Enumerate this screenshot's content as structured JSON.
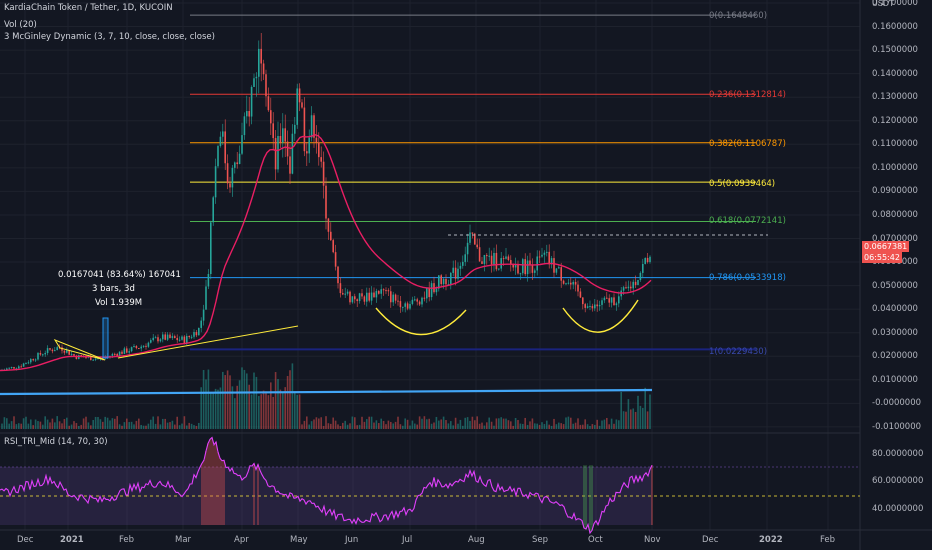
{
  "header": {
    "symbol_title": "KardiaChain Token / Tether, 1D, KUCOIN",
    "volume_label": "Vol (20)",
    "indicator_label": "3 McGinley Dynamic (3, 7, 10, close, close, close)",
    "currency": "USDT"
  },
  "measure_box": {
    "change": "0.0167041 (83.64%) 167041",
    "bars": "3 bars, 3d",
    "volume": "Vol 1.939M"
  },
  "fib_levels": [
    {
      "label": "0(0.1648460)",
      "value": 0.164846,
      "color": "#787b86"
    },
    {
      "label": "0.236(0.1312814)",
      "value": 0.1312814,
      "color": "#e53935"
    },
    {
      "label": "0.382(0.1106787)",
      "value": 0.1106787,
      "color": "#ff9800"
    },
    {
      "label": "0.5(0.0939464)",
      "value": 0.0939464,
      "color": "#ffeb3b"
    },
    {
      "label": "0.618(0.0772141)",
      "value": 0.0772141,
      "color": "#4caf50"
    },
    {
      "label": "0.786(0.0533918)",
      "value": 0.0533918,
      "color": "#2196f3"
    },
    {
      "label": "1(0.0229430)",
      "value": 0.022943,
      "color": "#1a237e"
    }
  ],
  "price_axis": {
    "ticks": [
      "0.1700000",
      "0.1600000",
      "0.1500000",
      "0.1400000",
      "0.1300000",
      "0.1200000",
      "0.1100000",
      "0.1000000",
      "0.0900000",
      "0.0800000",
      "0.0700000",
      "0.0600000",
      "0.0500000",
      "0.0400000",
      "0.0300000",
      "0.0200000",
      "0.0100000",
      "-0.0000000",
      "-0.0100000"
    ],
    "last_price": "0.0667381",
    "countdown": "06:55:42"
  },
  "rsi": {
    "label": "RSI_TRI_Mid (14, 70, 30)",
    "ticks": [
      "80.0000000",
      "60.0000000",
      "40.0000000"
    ]
  },
  "time_axis": [
    "Dec",
    "2021",
    "Feb",
    "Mar",
    "Apr",
    "May",
    "Jun",
    "Jul",
    "Aug",
    "Sep",
    "Oct",
    "Nov",
    "Dec",
    "2022",
    "Feb"
  ],
  "colors": {
    "background": "#131722",
    "up": "#26a69a",
    "down": "#ef5350",
    "mcginley": "#e91e63",
    "rsi_line": "#e040fb",
    "trend_line": "#ffeb3b",
    "horizontal_line": "#42a5f5"
  },
  "chart_data": {
    "type": "candlestick",
    "series": [
      {
        "name": "KardiaChain Token / Tether, 1D, KUCOIN",
        "x": [
          "Dec",
          "2021",
          "Feb",
          "Mar",
          "Apr",
          "May",
          "Jun",
          "Jul",
          "Aug",
          "Sep",
          "Oct",
          "Nov"
        ],
        "close": [
          0.018,
          0.024,
          0.028,
          0.035,
          0.13,
          0.11,
          0.045,
          0.05,
          0.063,
          0.058,
          0.041,
          0.0667381
        ]
      }
    ],
    "ylim": [
      -0.01,
      0.17
    ],
    "rsi_ylim": [
      30,
      90
    ],
    "grid": true
  }
}
